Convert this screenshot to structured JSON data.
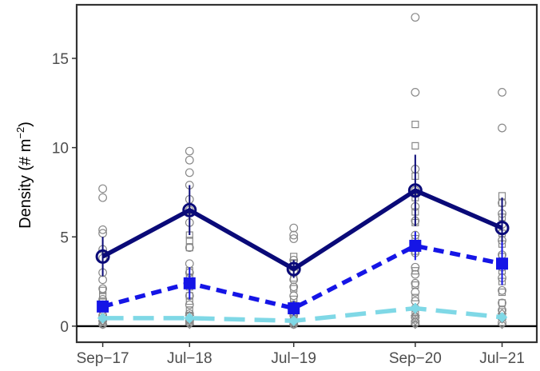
{
  "chart_data": {
    "type": "line",
    "title": "",
    "xlabel": "",
    "ylabel": "Density (# m",
    "ylabel_superscript": "−2",
    "ylabel_close": ")",
    "ylim": [
      -0.9,
      18.0
    ],
    "yticks": [
      0,
      5,
      10,
      15
    ],
    "ytick_labels": [
      "0",
      "5",
      "10",
      "15"
    ],
    "x_dates": [
      "2017-09",
      "2018-07",
      "2019-07",
      "2020-09",
      "2021-07"
    ],
    "x_tick_labels": [
      "Sep−17",
      "Jul−18",
      "Jul−19",
      "Sep−20",
      "Jul−21"
    ],
    "xlim": [
      "2017-06",
      "2021-11"
    ],
    "grid": false,
    "legend": "none",
    "reference_line_y": 0,
    "series": [
      {
        "marker": "circle",
        "line_style": "solid",
        "color": "#0a0a78",
        "values": [
          3.9,
          6.5,
          3.2,
          7.6,
          5.5
        ],
        "error": [
          1.1,
          1.4,
          0.5,
          2.0,
          1.7
        ]
      },
      {
        "marker": "square",
        "line_style": "dashed",
        "color": "#1515e6",
        "values": [
          1.1,
          2.4,
          1.0,
          4.5,
          3.5
        ],
        "error": [
          0.3,
          0.9,
          0.4,
          0.8,
          1.2
        ]
      },
      {
        "marker": "diamond",
        "line_style": "longdash",
        "color": "#7fd8e6",
        "values": [
          0.45,
          0.45,
          0.3,
          1.0,
          0.5
        ],
        "error": [
          0.1,
          0.1,
          0.05,
          0.3,
          0.2
        ]
      }
    ],
    "raw_points": {
      "circle": [
        [
          0,
          [
            7.7,
            7.2,
            5.4,
            5.2,
            4.3,
            3.8,
            3.0,
            2.6,
            2.1,
            1.5,
            1.2,
            0.9,
            0.6,
            0.3,
            0.1
          ]
        ],
        [
          1,
          [
            9.8,
            9.3,
            8.6,
            7.9,
            7.1,
            6.5,
            5.8,
            4.4,
            3.5,
            3.0,
            2.3,
            1.7,
            1.2,
            0.7,
            0.4,
            0.2
          ]
        ],
        [
          2,
          [
            5.5,
            5.1,
            4.9,
            3.7,
            3.3,
            3.1,
            2.6,
            2.2,
            1.7,
            1.2,
            0.9,
            0.6,
            0.3,
            0.1
          ]
        ],
        [
          3,
          [
            17.3,
            13.1,
            8.8,
            7.6,
            6.7,
            5.9,
            5.1,
            4.1,
            3.3,
            2.9,
            2.4,
            1.9,
            1.4,
            1.0,
            0.5,
            0.2
          ]
        ],
        [
          4,
          [
            13.1,
            11.1,
            6.9,
            6.3,
            5.7,
            4.8,
            4.0,
            3.3,
            2.7,
            2.0,
            1.3,
            0.9,
            0.5,
            0.2
          ]
        ]
      ],
      "square": [
        [
          0,
          [
            2.0,
            1.7,
            1.4,
            1.0,
            0.7,
            0.4,
            0.2
          ]
        ],
        [
          1,
          [
            5.1,
            4.8,
            4.4,
            3.1,
            2.7,
            2.2,
            1.7,
            1.4,
            0.9,
            0.6,
            0.3
          ]
        ],
        [
          2,
          [
            3.9,
            3.5,
            2.7,
            2.1,
            1.5,
            1.2,
            0.8,
            0.4,
            0.2
          ]
        ],
        [
          3,
          [
            11.3,
            10.1,
            8.4,
            7.2,
            6.4,
            5.8,
            4.9,
            4.2,
            3.1,
            2.3,
            1.6,
            0.8,
            0.4
          ]
        ],
        [
          4,
          [
            7.3,
            6.9,
            6.1,
            5.2,
            4.6,
            3.9,
            3.1,
            2.5,
            1.9,
            1.3,
            0.8,
            0.5
          ]
        ]
      ],
      "diamond": [
        [
          0,
          [
            0.5,
            0.3,
            0.1
          ]
        ],
        [
          1,
          [
            0.6,
            0.3,
            0.1
          ]
        ],
        [
          2,
          [
            0.4,
            0.2,
            0.1
          ]
        ],
        [
          3,
          [
            1.0,
            0.6,
            0.3,
            0.1
          ]
        ],
        [
          4,
          [
            0.7,
            0.4,
            0.1
          ]
        ]
      ],
      "color": "#888888"
    }
  }
}
